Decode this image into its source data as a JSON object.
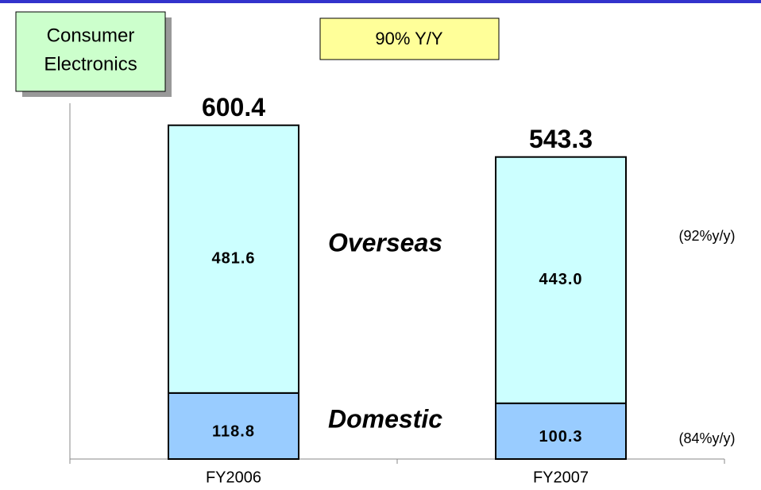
{
  "chart_data": {
    "type": "stacked-bar",
    "title": [
      "Consumer",
      "Electronics"
    ],
    "annotation": "90% Y/Y",
    "categories": [
      "FY2006",
      "FY2007"
    ],
    "series": [
      {
        "name": "Domestic",
        "color": "#99ccff",
        "values": [
          118.8,
          100.3
        ],
        "growth_label": "(84%y/y)"
      },
      {
        "name": "Overseas",
        "color": "#ccffff",
        "values": [
          481.6,
          443.0
        ],
        "value_labels": [
          "481.6",
          "443.0"
        ],
        "growth_label": "(92%y/y)"
      }
    ],
    "totals": [
      600.4,
      543.3
    ],
    "ylim": [
      0,
      650
    ]
  }
}
